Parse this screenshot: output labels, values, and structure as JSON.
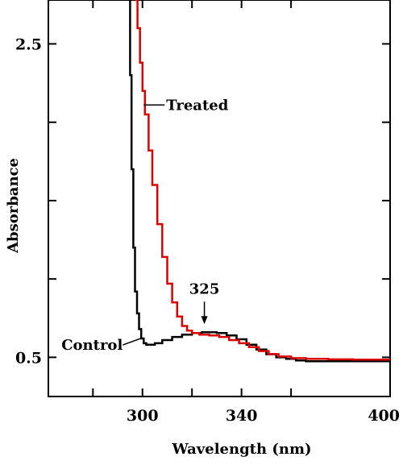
{
  "chart_data": {
    "type": "line",
    "title": "",
    "xlabel": "Wavelength (nm)",
    "ylabel": "Absorbance",
    "xlim": [
      262,
      400
    ],
    "ylim": [
      0.25,
      2.78
    ],
    "x_ticks": [
      300,
      340,
      400
    ],
    "x_minor_ticks": [
      280,
      320,
      360
    ],
    "y_ticks": [
      0.5,
      2.5
    ],
    "y_minor_ticks": [
      1.0,
      1.5,
      2.0
    ],
    "grid": false,
    "legend": "none",
    "series": [
      {
        "name": "Control",
        "color": "#000000",
        "points": [
          [
            294.5,
            2.78
          ],
          [
            295.0,
            2.3
          ],
          [
            295.6,
            1.7
          ],
          [
            296.3,
            1.2
          ],
          [
            297.0,
            0.92
          ],
          [
            297.8,
            0.78
          ],
          [
            298.6,
            0.68
          ],
          [
            299.5,
            0.62
          ],
          [
            300.5,
            0.59
          ],
          [
            301.5,
            0.58
          ],
          [
            303,
            0.58
          ],
          [
            305,
            0.59
          ],
          [
            308,
            0.61
          ],
          [
            312,
            0.63
          ],
          [
            316,
            0.645
          ],
          [
            320,
            0.655
          ],
          [
            324,
            0.66
          ],
          [
            327,
            0.66
          ],
          [
            330,
            0.655
          ],
          [
            334,
            0.64
          ],
          [
            338,
            0.615
          ],
          [
            342,
            0.58
          ],
          [
            346,
            0.55
          ],
          [
            350,
            0.52
          ],
          [
            354,
            0.5
          ],
          [
            358,
            0.49
          ],
          [
            362,
            0.48
          ],
          [
            366,
            0.475
          ],
          [
            372,
            0.475
          ],
          [
            380,
            0.475
          ],
          [
            390,
            0.475
          ],
          [
            400,
            0.475
          ]
        ]
      },
      {
        "name": "Treated",
        "color": "#dd0000",
        "points": [
          [
            297.0,
            2.78
          ],
          [
            298.0,
            2.6
          ],
          [
            299.0,
            2.38
          ],
          [
            300.0,
            2.2
          ],
          [
            301.0,
            2.05
          ],
          [
            302.5,
            1.82
          ],
          [
            304.0,
            1.6
          ],
          [
            306.0,
            1.35
          ],
          [
            308.0,
            1.14
          ],
          [
            310.0,
            0.97
          ],
          [
            312.0,
            0.85
          ],
          [
            314.0,
            0.76
          ],
          [
            316.0,
            0.7
          ],
          [
            318.0,
            0.67
          ],
          [
            320.0,
            0.655
          ],
          [
            323.0,
            0.645
          ],
          [
            327.0,
            0.64
          ],
          [
            331.0,
            0.63
          ],
          [
            335.0,
            0.61
          ],
          [
            339.0,
            0.59
          ],
          [
            343.0,
            0.565
          ],
          [
            347.0,
            0.54
          ],
          [
            351.0,
            0.52
          ],
          [
            355.0,
            0.505
          ],
          [
            360.0,
            0.495
          ],
          [
            366.0,
            0.49
          ],
          [
            375.0,
            0.487
          ],
          [
            385.0,
            0.485
          ],
          [
            400.0,
            0.485
          ]
        ]
      }
    ],
    "annotations": [
      {
        "text": "Treated",
        "series": "Treated",
        "point": [
          300.5,
          2.11
        ]
      },
      {
        "text": "Control",
        "series": "Control",
        "point": [
          299.2,
          0.62
        ]
      },
      {
        "text": "325",
        "point": [
          325,
          0.66
        ],
        "arrow": "down"
      }
    ]
  }
}
